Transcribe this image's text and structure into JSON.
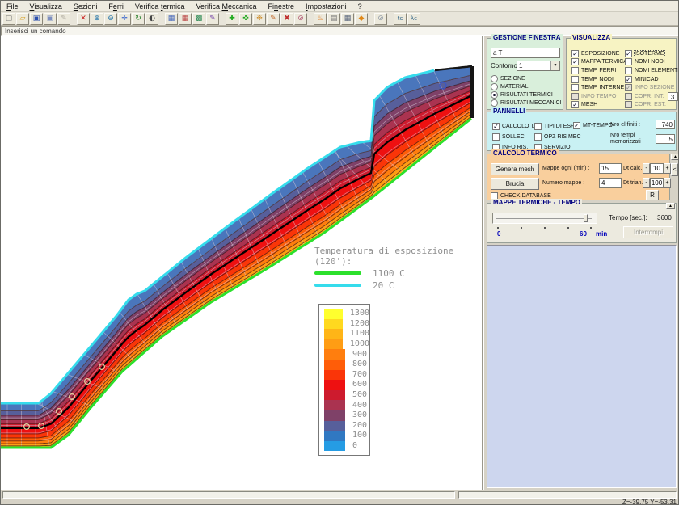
{
  "menu": {
    "items": [
      {
        "label": "File",
        "hotkey_index": 0
      },
      {
        "label": "Visualizza",
        "hotkey_index": 0
      },
      {
        "label": "Sezioni",
        "hotkey_index": 0
      },
      {
        "label": "Ferri",
        "hotkey_index": 1
      },
      {
        "label": "Verifica termica",
        "hotkey_index": 9
      },
      {
        "label": "Verifica Meccanica",
        "hotkey_index": 9
      },
      {
        "label": "Finestre",
        "hotkey_index": 2
      },
      {
        "label": "Impostazioni",
        "hotkey_index": 0
      },
      {
        "label": "?",
        "hotkey_index": -1
      }
    ]
  },
  "toolbar": {
    "groups": [
      [
        {
          "name": "new-file",
          "glyph": "▢",
          "color": "#7a7a7a"
        },
        {
          "name": "open-folder",
          "glyph": "▱",
          "color": "#d8a020"
        },
        {
          "name": "save",
          "glyph": "▣",
          "color": "#2b4fae"
        },
        {
          "name": "save-all",
          "glyph": "▣",
          "color": "#7d8fc0"
        },
        {
          "name": "edit-disabled",
          "glyph": "✎",
          "color": "#b0aca0"
        }
      ],
      [
        {
          "name": "delete",
          "glyph": "✕",
          "color": "#cc2020"
        },
        {
          "name": "zoom-in",
          "glyph": "⊕",
          "color": "#1a6fa8"
        },
        {
          "name": "zoom-out",
          "glyph": "⊖",
          "color": "#1a6fa8"
        },
        {
          "name": "pan",
          "glyph": "✛",
          "color": "#2255cc"
        },
        {
          "name": "refresh",
          "glyph": "↻",
          "color": "#11761a"
        },
        {
          "name": "shade",
          "glyph": "◐",
          "color": "#444444"
        }
      ],
      [
        {
          "name": "mesh-nodes-blue",
          "glyph": "▦",
          "color": "#4466bb"
        },
        {
          "name": "mesh-nodes-red",
          "glyph": "▦",
          "color": "#bb4444"
        },
        {
          "name": "mesh-nodes-green",
          "glyph": "▩",
          "color": "#2e8b57"
        },
        {
          "name": "mesh-edit",
          "glyph": "✎",
          "color": "#7744aa"
        }
      ],
      [
        {
          "name": "add-node",
          "glyph": "✚",
          "color": "#1faa1f"
        },
        {
          "name": "add-node-grid",
          "glyph": "✜",
          "color": "#1faa1f"
        },
        {
          "name": "nodes-multi",
          "glyph": "❉",
          "color": "#cc8822"
        },
        {
          "name": "edit-node",
          "glyph": "✎",
          "color": "#c06020"
        },
        {
          "name": "delete-node",
          "glyph": "✖",
          "color": "#c03030"
        },
        {
          "name": "disable-node",
          "glyph": "⊘",
          "color": "#b05070"
        }
      ],
      [
        {
          "name": "burn-lamp",
          "glyph": "♨",
          "color": "#e07416"
        },
        {
          "name": "worksheet",
          "glyph": "▤",
          "color": "#6f6f6f"
        },
        {
          "name": "table-grid",
          "glyph": "▦",
          "color": "#55627a"
        },
        {
          "name": "droplet",
          "glyph": "◆",
          "color": "#e08818"
        }
      ],
      [
        {
          "name": "no-action",
          "glyph": "⊘",
          "color": "#8a96a4"
        }
      ],
      [
        {
          "name": "temp-calc",
          "glyph": "tc",
          "color": "#336688"
        },
        {
          "name": "lambda-calc",
          "glyph": "λc",
          "color": "#336688"
        }
      ]
    ]
  },
  "command_bar": {
    "text": "Inserisci un comando"
  },
  "right_panel": {
    "gestione_finestra": {
      "title": "GESTIONE FINESTRA",
      "input_value": "a T",
      "contorno_label": "Contorno:",
      "contorno_value": "1",
      "radios": [
        {
          "label": "SEZIONE",
          "selected": false
        },
        {
          "label": "MATERIALI",
          "selected": false
        },
        {
          "label": "RISULTATI TERMICI",
          "selected": true
        },
        {
          "label": "RISULTATI MECCANICI",
          "selected": false
        }
      ]
    },
    "visualizza": {
      "title": "VISUALIZZA",
      "left": [
        {
          "label": "ESPOSIZIONE",
          "checked": true
        },
        {
          "label": "MAPPA TERMICA",
          "checked": true
        },
        {
          "label": "TEMP. FERRI",
          "checked": false
        },
        {
          "label": "TEMP. NODI",
          "checked": false
        },
        {
          "label": "TEMP. INTERNE",
          "checked": false
        },
        {
          "label": "INFO TEMPO",
          "checked": false,
          "disabled": true
        },
        {
          "label": "MESH",
          "checked": true
        }
      ],
      "right": [
        {
          "label": "ISOTERME",
          "checked": true,
          "focus": true
        },
        {
          "label": "NOMI NODI",
          "checked": false
        },
        {
          "label": "NOMI ELEMENTI",
          "checked": false
        },
        {
          "label": "MINICAD",
          "checked": true
        },
        {
          "label": "INFO SEZIONE",
          "checked": true,
          "disabled": true
        },
        {
          "label": "COPR. INT.",
          "checked": false,
          "disabled": true,
          "field": "3"
        },
        {
          "label": "COPR. EST.",
          "checked": false,
          "disabled": true
        }
      ]
    },
    "pannelli": {
      "title": "PANNELLI",
      "col1": [
        {
          "label": "CALCOLO T.",
          "checked": true
        },
        {
          "label": "SOLLEC.",
          "checked": false
        },
        {
          "label": "INFO RIS.",
          "checked": false
        }
      ],
      "col2": [
        {
          "label": "TIPI DI ESP.",
          "checked": false
        },
        {
          "label": "OPZ RIS MEC",
          "checked": false
        },
        {
          "label": "SERVIZIO",
          "checked": false
        }
      ],
      "mt_tempo": {
        "label": "MT-TEMPO",
        "checked": true
      },
      "nro_el_label": "Nro el.finiti :",
      "nro_el_value": "740",
      "nro_tempi_label": "Nro tempi memorizzati :",
      "nro_tempi_value": "5"
    },
    "calcolo_termico": {
      "title": "CALCOLO TERMICO",
      "genera_mesh": "Genera mesh",
      "brucia": "Brucia",
      "mappe_ogni_label": "Mappe ogni (min) :",
      "mappe_ogni_value": "15",
      "numero_mappe_label": "Numero mappe :",
      "numero_mappe_value": "4",
      "dt_calc_label": "Dt calc.:",
      "dt_calc_value": "10",
      "dt_trian_label": "Dt trian.:",
      "dt_trian_value": "100",
      "check_database_label": "CHECK DATABASE",
      "r_button": "R",
      "expand_button": "<",
      "collapse_button": "▲"
    },
    "mappe_tempo": {
      "title": "MAPPE TERMICHE - TEMPO",
      "slider_min": "0",
      "slider_max": "60",
      "slider_unit": "min",
      "tempo_label": "Tempo [sec.]:",
      "tempo_value": "3600",
      "interrompi": "Interrompi",
      "collapse_button": "▲"
    }
  },
  "canvas": {
    "legend": {
      "title": "Temperatura di esposizione (120'):",
      "entries": [
        {
          "label": "1100 C",
          "color": "#2ce02c"
        },
        {
          "label": "20 C",
          "color": "#35dcec"
        }
      ]
    },
    "scale": {
      "values": [
        "1300",
        "1200",
        "1100",
        "1000",
        "900",
        "800",
        "700",
        "600",
        "500",
        "400",
        "300",
        "200",
        "100",
        "0"
      ],
      "colors": [
        "#ffff2e",
        "#ffd91f",
        "#ffb517",
        "#ff9d14",
        "#ff7e0e",
        "#ff5d08",
        "#fa3508",
        "#ee1011",
        "#cd1b2e",
        "#aa3350",
        "#7f4168",
        "#575f9b",
        "#3078c2",
        "#259ce4"
      ]
    },
    "band_top_color": "#4a76bc"
  },
  "status_bar": {
    "coordinates": "Z=-39.75 Y=-53.31"
  }
}
